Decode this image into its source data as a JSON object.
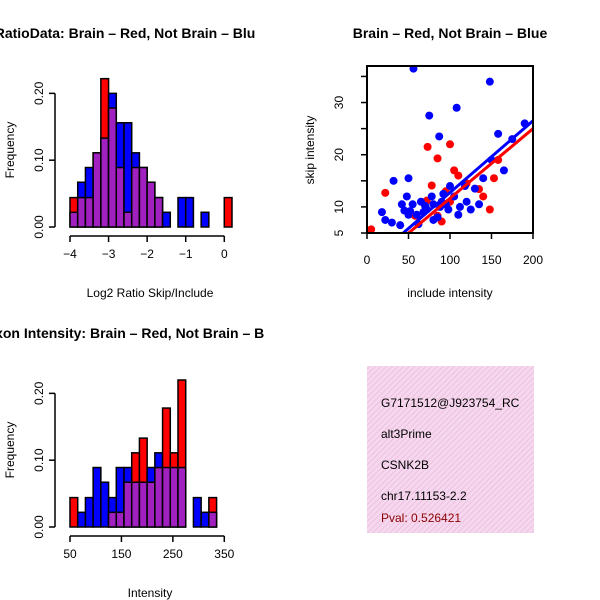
{
  "colors": {
    "red": "#ff0000",
    "blue": "#0000ff",
    "overlap": "#a020c0",
    "info_bg": "#f6d8ee",
    "pval": "#8b0000"
  },
  "chart_data": [
    {
      "type": "histogram",
      "title": "RatioData: Brain – Red, Not Brain – Blu",
      "xlabel": "Log2 Ratio Skip/Include",
      "ylabel": "Frequency",
      "xlim": [
        -4,
        0.2
      ],
      "ylim": [
        0,
        0.22
      ],
      "xticks": [
        -4,
        -3,
        -2,
        -1,
        0
      ],
      "yticks": [
        0.0,
        0.1,
        0.2
      ],
      "ytick_labels": [
        "0.00",
        "0.10",
        "0.20"
      ],
      "bin_width": 0.2,
      "bin_start": -4.0,
      "series": [
        {
          "name": "Brain",
          "color": "red",
          "values": [
            0.044,
            0.044,
            0.044,
            0.111,
            0.222,
            0.178,
            0.089,
            0.022,
            0.089,
            0.089,
            0.067,
            0.044,
            0,
            0,
            0,
            0,
            0,
            0,
            0,
            0,
            0.044
          ]
        },
        {
          "name": "Not Brain",
          "color": "blue",
          "values": [
            0.022,
            0.067,
            0.089,
            0.111,
            0.133,
            0.2,
            0.156,
            0.156,
            0.111,
            0.089,
            0.067,
            0.044,
            0.022,
            0,
            0.044,
            0.044,
            0,
            0.022,
            0,
            0,
            0
          ]
        }
      ]
    },
    {
      "type": "scatter",
      "title": "Brain – Red, Not Brain – Blue",
      "xlabel": "include intensity",
      "ylabel": "skip intensity",
      "xlim": [
        0,
        200
      ],
      "ylim": [
        5,
        37
      ],
      "xticks": [
        0,
        50,
        100,
        150,
        200
      ],
      "yticks": [
        5,
        10,
        20,
        30
      ],
      "series": [
        {
          "name": "Brain",
          "color": "red",
          "points": [
            [
              5,
              5.7
            ],
            [
              22,
              12.7
            ],
            [
              58,
              8.3
            ],
            [
              72,
              11.2
            ],
            [
              73,
              21.5
            ],
            [
              78,
              14.1
            ],
            [
              85,
              19.3
            ],
            [
              85,
              8.3
            ],
            [
              90,
              7.2
            ],
            [
              95,
              13.0
            ],
            [
              100,
              11.0
            ],
            [
              100,
              22.0
            ],
            [
              105,
              17.0
            ],
            [
              110,
              16.0
            ],
            [
              120,
              14.5
            ],
            [
              135,
              13.4
            ],
            [
              140,
              12.0
            ],
            [
              148,
              9.5
            ],
            [
              153,
              15.5
            ],
            [
              158,
              19.0
            ]
          ],
          "fit": [
            [
              0,
              -1.7
            ],
            [
              200,
              25.0
            ]
          ]
        },
        {
          "name": "Not Brain",
          "color": "blue",
          "points": [
            [
              18,
              9.0
            ],
            [
              22,
              7.5
            ],
            [
              30,
              7.0
            ],
            [
              32,
              15.0
            ],
            [
              40,
              6.5
            ],
            [
              42,
              10.5
            ],
            [
              45,
              9.3
            ],
            [
              48,
              12.0
            ],
            [
              50,
              15.5
            ],
            [
              50,
              8.5
            ],
            [
              52,
              9.2
            ],
            [
              55,
              10.5
            ],
            [
              56,
              36.5
            ],
            [
              60,
              8.5
            ],
            [
              62,
              6.7
            ],
            [
              65,
              11.0
            ],
            [
              68,
              9.0
            ],
            [
              70,
              10.2
            ],
            [
              72,
              9.5
            ],
            [
              75,
              27.5
            ],
            [
              78,
              12.0
            ],
            [
              80,
              7.5
            ],
            [
              80,
              10.5
            ],
            [
              85,
              8.0
            ],
            [
              87,
              23.5
            ],
            [
              88,
              10.0
            ],
            [
              90,
              11.0
            ],
            [
              92,
              12.5
            ],
            [
              95,
              10.5
            ],
            [
              98,
              9.5
            ],
            [
              100,
              14.0
            ],
            [
              105,
              12.0
            ],
            [
              108,
              29.0
            ],
            [
              110,
              8.5
            ],
            [
              112,
              10.0
            ],
            [
              118,
              14.0
            ],
            [
              120,
              11.0
            ],
            [
              125,
              9.5
            ],
            [
              130,
              13.5
            ],
            [
              135,
              10.5
            ],
            [
              140,
              15.5
            ],
            [
              148,
              34.0
            ],
            [
              150,
              19.0
            ],
            [
              158,
              24.0
            ],
            [
              165,
              17.0
            ],
            [
              175,
              23.0
            ],
            [
              190,
              26.0
            ]
          ],
          "fit": [
            [
              0,
              -1.0
            ],
            [
              200,
              26.5
            ]
          ]
        }
      ]
    },
    {
      "type": "histogram",
      "title": "Exon Intensity: Brain – Red, Not Brain – B",
      "xlabel": "Intensity",
      "ylabel": "Frequency",
      "xlim": [
        50,
        365
      ],
      "ylim": [
        0,
        0.22
      ],
      "xticks": [
        50,
        150,
        250,
        350
      ],
      "yticks": [
        0.0,
        0.1,
        0.2
      ],
      "ytick_labels": [
        "0.00",
        "0.10",
        "0.20"
      ],
      "bin_width": 15,
      "bin_start": 50,
      "series": [
        {
          "name": "Brain",
          "color": "red",
          "values": [
            0.044,
            0,
            0,
            0,
            0,
            0.022,
            0.022,
            0.067,
            0.111,
            0.133,
            0.067,
            0.089,
            0.178,
            0.111,
            0.22,
            0,
            0,
            0,
            0.044
          ]
        },
        {
          "name": "Not Brain",
          "color": "blue",
          "values": [
            0,
            0.022,
            0.044,
            0.089,
            0.067,
            0.044,
            0.089,
            0.089,
            0.067,
            0.067,
            0.089,
            0.111,
            0.089,
            0.089,
            0.089,
            0,
            0.044,
            0.022,
            0.022
          ]
        }
      ]
    }
  ],
  "info": {
    "probe_id": "G7171512@J923754_RC",
    "event_type": "alt3Prime",
    "gene": "CSNK2B",
    "location": "chr17.11153-2.2",
    "pval": "Pval: 0.526421"
  }
}
